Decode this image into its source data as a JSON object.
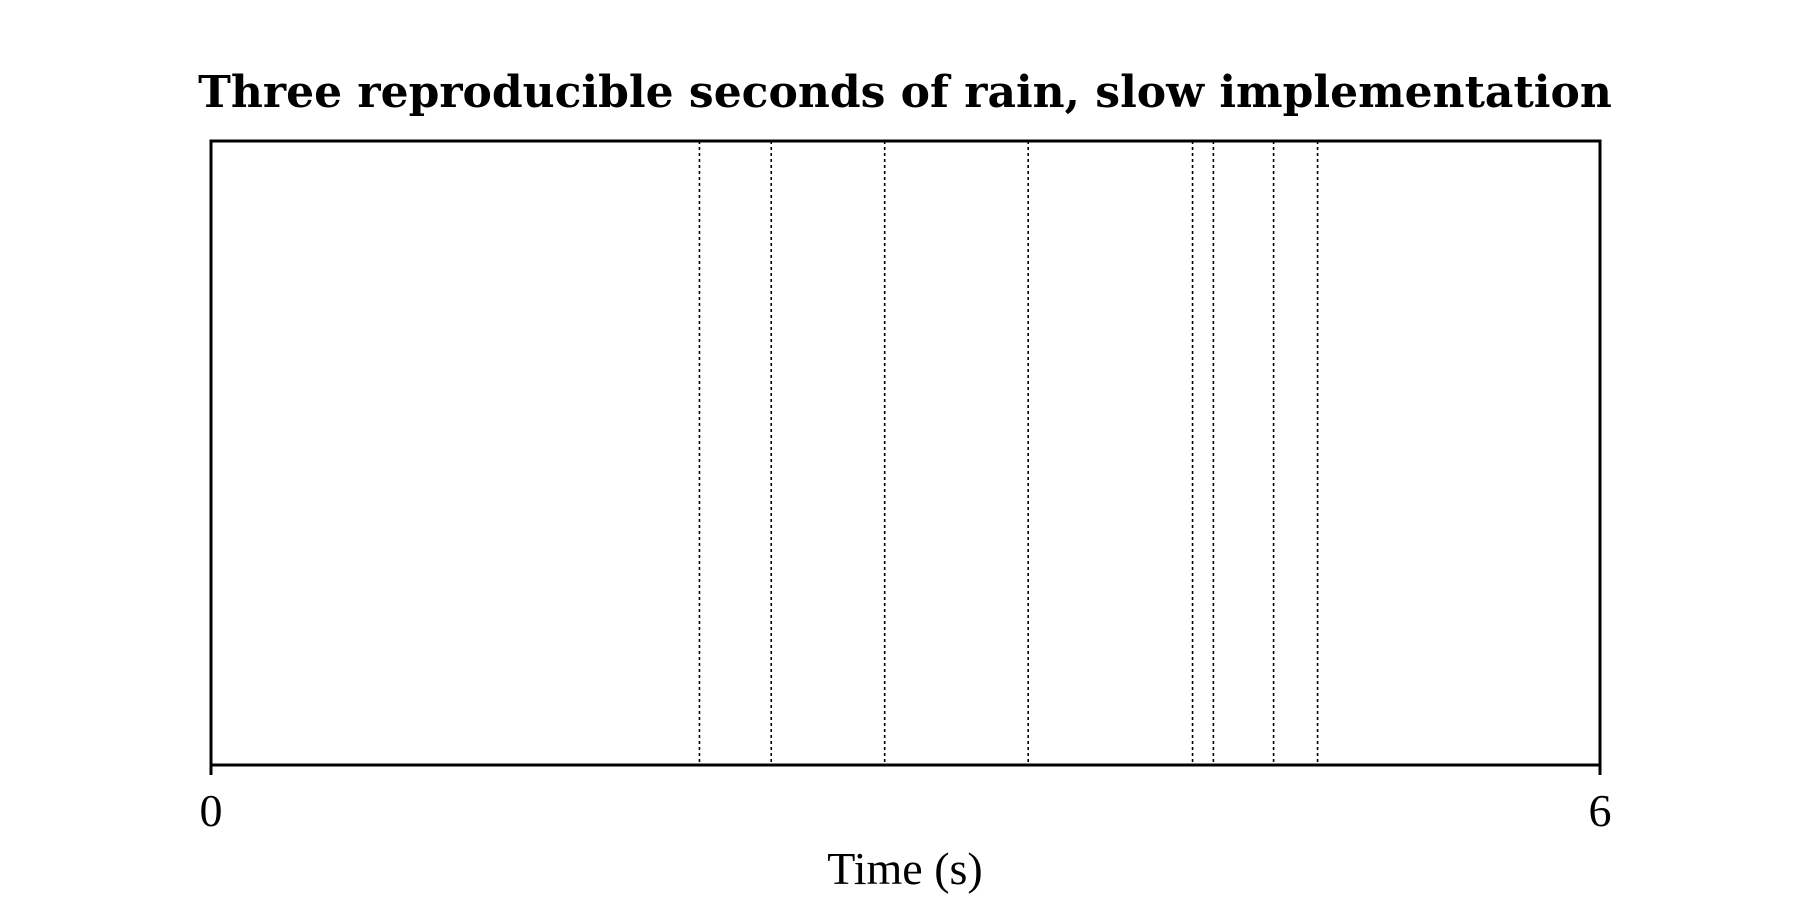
{
  "chart_data": {
    "type": "scatter",
    "title": "Three reproducible seconds of rain, slow implementation",
    "xlabel": "Time (s)",
    "ylabel": "",
    "xlim": [
      0,
      6
    ],
    "xticks": [
      0,
      6
    ],
    "tick_labels": [
      "0",
      "6"
    ],
    "grid": false,
    "events_x": [
      2.11,
      2.42,
      2.91,
      3.53,
      4.24,
      4.33,
      4.59,
      4.78
    ],
    "event_line_style": "dotted",
    "event_color": "#000000"
  }
}
